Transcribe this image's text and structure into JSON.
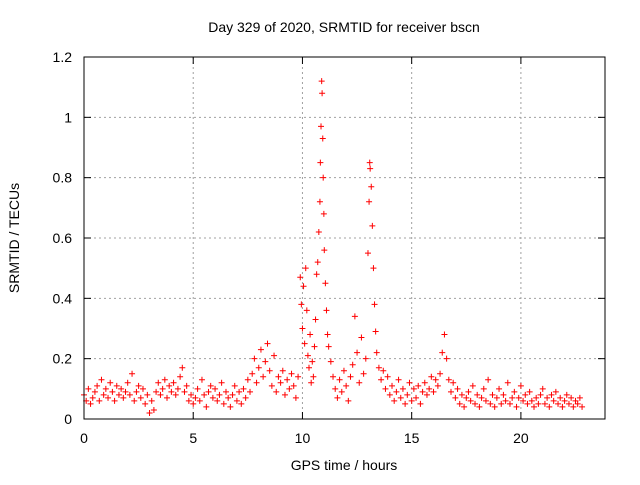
{
  "chart_data": {
    "type": "scatter",
    "title": "Day 329 of 2020, SRMTID for receiver bscn",
    "xlabel": "GPS time / hours",
    "ylabel": "SRMTID / TECUs",
    "xlim": [
      0,
      23.85
    ],
    "ylim": [
      0,
      1.2
    ],
    "x_ticks": [
      0,
      5,
      10,
      15,
      20
    ],
    "x_tick_labels": [
      "0",
      "5",
      "10",
      "15",
      "20"
    ],
    "y_ticks": [
      0,
      0.2,
      0.4,
      0.6,
      0.8,
      1.0,
      1.2
    ],
    "y_tick_labels": [
      "0",
      "0.2",
      "0.4",
      "0.6",
      "0.8",
      "1",
      "1.2"
    ],
    "grid": true,
    "marker": "+",
    "series": [
      {
        "name": "SRMTID",
        "color": "#ff0000",
        "points": [
          [
            0.0,
            0.08
          ],
          [
            0.1,
            0.06
          ],
          [
            0.2,
            0.1
          ],
          [
            0.3,
            0.05
          ],
          [
            0.4,
            0.07
          ],
          [
            0.5,
            0.09
          ],
          [
            0.6,
            0.11
          ],
          [
            0.7,
            0.06
          ],
          [
            0.8,
            0.13
          ],
          [
            0.9,
            0.08
          ],
          [
            1.0,
            0.1
          ],
          [
            1.1,
            0.07
          ],
          [
            1.2,
            0.12
          ],
          [
            1.3,
            0.09
          ],
          [
            1.4,
            0.06
          ],
          [
            1.5,
            0.11
          ],
          [
            1.6,
            0.08
          ],
          [
            1.7,
            0.1
          ],
          [
            1.8,
            0.07
          ],
          [
            1.9,
            0.09
          ],
          [
            2.0,
            0.12
          ],
          [
            2.1,
            0.08
          ],
          [
            2.2,
            0.15
          ],
          [
            2.3,
            0.06
          ],
          [
            2.4,
            0.09
          ],
          [
            2.5,
            0.11
          ],
          [
            2.6,
            0.07
          ],
          [
            2.7,
            0.1
          ],
          [
            2.8,
            0.05
          ],
          [
            2.9,
            0.08
          ],
          [
            3.0,
            0.02
          ],
          [
            3.1,
            0.06
          ],
          [
            3.2,
            0.03
          ],
          [
            3.3,
            0.09
          ],
          [
            3.4,
            0.12
          ],
          [
            3.5,
            0.08
          ],
          [
            3.6,
            0.1
          ],
          [
            3.7,
            0.13
          ],
          [
            3.8,
            0.07
          ],
          [
            3.9,
            0.11
          ],
          [
            4.0,
            0.09
          ],
          [
            4.1,
            0.12
          ],
          [
            4.2,
            0.08
          ],
          [
            4.3,
            0.1
          ],
          [
            4.4,
            0.14
          ],
          [
            4.5,
            0.17
          ],
          [
            4.6,
            0.09
          ],
          [
            4.7,
            0.11
          ],
          [
            4.8,
            0.06
          ],
          [
            4.9,
            0.08
          ],
          [
            5.0,
            0.05
          ],
          [
            5.1,
            0.07
          ],
          [
            5.2,
            0.1
          ],
          [
            5.3,
            0.06
          ],
          [
            5.4,
            0.13
          ],
          [
            5.5,
            0.08
          ],
          [
            5.6,
            0.04
          ],
          [
            5.7,
            0.09
          ],
          [
            5.8,
            0.11
          ],
          [
            5.9,
            0.07
          ],
          [
            6.0,
            0.1
          ],
          [
            6.1,
            0.06
          ],
          [
            6.2,
            0.08
          ],
          [
            6.3,
            0.12
          ],
          [
            6.4,
            0.05
          ],
          [
            6.5,
            0.09
          ],
          [
            6.6,
            0.07
          ],
          [
            6.7,
            0.04
          ],
          [
            6.8,
            0.08
          ],
          [
            6.9,
            0.11
          ],
          [
            7.0,
            0.06
          ],
          [
            7.1,
            0.09
          ],
          [
            7.2,
            0.05
          ],
          [
            7.3,
            0.1
          ],
          [
            7.4,
            0.07
          ],
          [
            7.5,
            0.13
          ],
          [
            7.6,
            0.09
          ],
          [
            7.7,
            0.15
          ],
          [
            7.8,
            0.2
          ],
          [
            7.9,
            0.12
          ],
          [
            8.0,
            0.17
          ],
          [
            8.1,
            0.23
          ],
          [
            8.2,
            0.14
          ],
          [
            8.3,
            0.19
          ],
          [
            8.4,
            0.25
          ],
          [
            8.5,
            0.16
          ],
          [
            8.6,
            0.11
          ],
          [
            8.7,
            0.21
          ],
          [
            8.8,
            0.09
          ],
          [
            8.9,
            0.14
          ],
          [
            9.0,
            0.12
          ],
          [
            9.1,
            0.16
          ],
          [
            9.2,
            0.08
          ],
          [
            9.3,
            0.13
          ],
          [
            9.4,
            0.1
          ],
          [
            9.5,
            0.15
          ],
          [
            9.6,
            0.11
          ],
          [
            9.7,
            0.07
          ],
          [
            9.8,
            0.14
          ],
          [
            9.9,
            0.47
          ],
          [
            9.95,
            0.38
          ],
          [
            10.0,
            0.3
          ],
          [
            10.05,
            0.44
          ],
          [
            10.1,
            0.25
          ],
          [
            10.15,
            0.5
          ],
          [
            10.2,
            0.36
          ],
          [
            10.25,
            0.21
          ],
          [
            10.3,
            0.17
          ],
          [
            10.35,
            0.28
          ],
          [
            10.4,
            0.12
          ],
          [
            10.45,
            0.19
          ],
          [
            10.5,
            0.14
          ],
          [
            10.55,
            0.24
          ],
          [
            10.6,
            0.33
          ],
          [
            10.65,
            0.48
          ],
          [
            10.7,
            0.52
          ],
          [
            10.75,
            0.62
          ],
          [
            10.8,
            0.72
          ],
          [
            10.82,
            0.85
          ],
          [
            10.85,
            0.97
          ],
          [
            10.88,
            1.12
          ],
          [
            10.9,
            1.08
          ],
          [
            10.93,
            0.93
          ],
          [
            10.95,
            0.8
          ],
          [
            10.98,
            0.68
          ],
          [
            11.0,
            0.56
          ],
          [
            11.05,
            0.45
          ],
          [
            11.1,
            0.36
          ],
          [
            11.15,
            0.28
          ],
          [
            11.2,
            0.24
          ],
          [
            11.3,
            0.19
          ],
          [
            11.4,
            0.14
          ],
          [
            11.5,
            0.1
          ],
          [
            11.6,
            0.07
          ],
          [
            11.7,
            0.13
          ],
          [
            11.8,
            0.09
          ],
          [
            11.9,
            0.16
          ],
          [
            12.0,
            0.11
          ],
          [
            12.1,
            0.06
          ],
          [
            12.2,
            0.14
          ],
          [
            12.3,
            0.18
          ],
          [
            12.4,
            0.34
          ],
          [
            12.5,
            0.22
          ],
          [
            12.6,
            0.12
          ],
          [
            12.7,
            0.27
          ],
          [
            12.8,
            0.15
          ],
          [
            12.9,
            0.2
          ],
          [
            13.0,
            0.55
          ],
          [
            13.05,
            0.72
          ],
          [
            13.08,
            0.85
          ],
          [
            13.1,
            0.83
          ],
          [
            13.15,
            0.77
          ],
          [
            13.2,
            0.64
          ],
          [
            13.25,
            0.5
          ],
          [
            13.3,
            0.38
          ],
          [
            13.35,
            0.29
          ],
          [
            13.4,
            0.22
          ],
          [
            13.5,
            0.17
          ],
          [
            13.6,
            0.13
          ],
          [
            13.7,
            0.16
          ],
          [
            13.8,
            0.1
          ],
          [
            13.9,
            0.14
          ],
          [
            14.0,
            0.08
          ],
          [
            14.1,
            0.11
          ],
          [
            14.2,
            0.06
          ],
          [
            14.3,
            0.09
          ],
          [
            14.4,
            0.13
          ],
          [
            14.5,
            0.07
          ],
          [
            14.6,
            0.1
          ],
          [
            14.7,
            0.05
          ],
          [
            14.8,
            0.08
          ],
          [
            14.9,
            0.12
          ],
          [
            15.0,
            0.06
          ],
          [
            15.1,
            0.1
          ],
          [
            15.2,
            0.07
          ],
          [
            15.3,
            0.11
          ],
          [
            15.4,
            0.05
          ],
          [
            15.5,
            0.09
          ],
          [
            15.6,
            0.12
          ],
          [
            15.7,
            0.08
          ],
          [
            15.8,
            0.1
          ],
          [
            15.9,
            0.14
          ],
          [
            16.0,
            0.09
          ],
          [
            16.1,
            0.13
          ],
          [
            16.2,
            0.11
          ],
          [
            16.3,
            0.15
          ],
          [
            16.4,
            0.22
          ],
          [
            16.5,
            0.28
          ],
          [
            16.6,
            0.2
          ],
          [
            16.7,
            0.13
          ],
          [
            16.8,
            0.09
          ],
          [
            16.9,
            0.12
          ],
          [
            17.0,
            0.07
          ],
          [
            17.1,
            0.1
          ],
          [
            17.2,
            0.05
          ],
          [
            17.3,
            0.08
          ],
          [
            17.4,
            0.04
          ],
          [
            17.5,
            0.07
          ],
          [
            17.6,
            0.09
          ],
          [
            17.7,
            0.06
          ],
          [
            17.8,
            0.11
          ],
          [
            17.9,
            0.05
          ],
          [
            18.0,
            0.08
          ],
          [
            18.1,
            0.04
          ],
          [
            18.2,
            0.07
          ],
          [
            18.3,
            0.1
          ],
          [
            18.4,
            0.06
          ],
          [
            18.5,
            0.13
          ],
          [
            18.6,
            0.05
          ],
          [
            18.7,
            0.08
          ],
          [
            18.8,
            0.04
          ],
          [
            18.9,
            0.07
          ],
          [
            19.0,
            0.1
          ],
          [
            19.1,
            0.05
          ],
          [
            19.2,
            0.08
          ],
          [
            19.3,
            0.06
          ],
          [
            19.4,
            0.12
          ],
          [
            19.5,
            0.05
          ],
          [
            19.6,
            0.07
          ],
          [
            19.7,
            0.09
          ],
          [
            19.8,
            0.04
          ],
          [
            19.9,
            0.07
          ],
          [
            20.0,
            0.11
          ],
          [
            20.1,
            0.06
          ],
          [
            20.2,
            0.08
          ],
          [
            20.3,
            0.05
          ],
          [
            20.4,
            0.09
          ],
          [
            20.5,
            0.06
          ],
          [
            20.6,
            0.04
          ],
          [
            20.7,
            0.07
          ],
          [
            20.8,
            0.05
          ],
          [
            20.9,
            0.08
          ],
          [
            21.0,
            0.1
          ],
          [
            21.1,
            0.05
          ],
          [
            21.2,
            0.07
          ],
          [
            21.3,
            0.04
          ],
          [
            21.4,
            0.08
          ],
          [
            21.5,
            0.06
          ],
          [
            21.6,
            0.09
          ],
          [
            21.7,
            0.05
          ],
          [
            21.8,
            0.07
          ],
          [
            21.9,
            0.04
          ],
          [
            22.0,
            0.06
          ],
          [
            22.1,
            0.08
          ],
          [
            22.2,
            0.05
          ],
          [
            22.3,
            0.07
          ],
          [
            22.4,
            0.04
          ],
          [
            22.5,
            0.06
          ],
          [
            22.6,
            0.05
          ],
          [
            22.7,
            0.07
          ],
          [
            22.8,
            0.04
          ]
        ]
      }
    ]
  }
}
